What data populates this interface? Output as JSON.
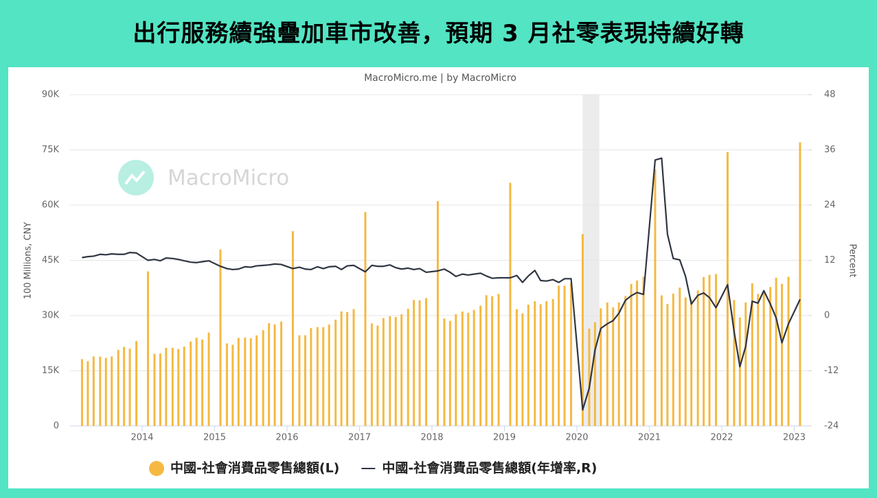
{
  "chart_data": {
    "type": "bar",
    "title": "出行服務續強疊加車市改善，預期 3 月社零表現持續好轉",
    "subtitle": "MacroMicro.me | by MacroMicro",
    "watermark": "MacroMicro",
    "y_label": "100 Millions, CNY",
    "y2_label": "Percent",
    "x": [
      2013.17,
      2013.25,
      2013.33,
      2013.42,
      2013.5,
      2013.58,
      2013.67,
      2013.75,
      2013.83,
      2013.92,
      2014.08,
      2014.17,
      2014.25,
      2014.33,
      2014.42,
      2014.5,
      2014.58,
      2014.67,
      2014.75,
      2014.83,
      2014.92,
      2015.08,
      2015.17,
      2015.25,
      2015.33,
      2015.42,
      2015.5,
      2015.58,
      2015.67,
      2015.75,
      2015.83,
      2015.92,
      2016.08,
      2016.17,
      2016.25,
      2016.33,
      2016.42,
      2016.5,
      2016.58,
      2016.67,
      2016.75,
      2016.83,
      2016.92,
      2017.08,
      2017.17,
      2017.25,
      2017.33,
      2017.42,
      2017.5,
      2017.58,
      2017.67,
      2017.75,
      2017.83,
      2017.92,
      2018.08,
      2018.17,
      2018.25,
      2018.33,
      2018.42,
      2018.5,
      2018.58,
      2018.67,
      2018.75,
      2018.83,
      2018.92,
      2019.08,
      2019.17,
      2019.25,
      2019.33,
      2019.42,
      2019.5,
      2019.58,
      2019.67,
      2019.75,
      2019.83,
      2019.92,
      2020.08,
      2020.17,
      2020.25,
      2020.33,
      2020.42,
      2020.5,
      2020.58,
      2020.67,
      2020.75,
      2020.83,
      2020.92,
      2021.08,
      2021.17,
      2021.25,
      2021.33,
      2021.42,
      2021.5,
      2021.58,
      2021.67,
      2021.75,
      2021.83,
      2021.92,
      2022.08,
      2022.17,
      2022.25,
      2022.33,
      2022.42,
      2022.5,
      2022.58,
      2022.67,
      2022.75,
      2022.83,
      2022.92,
      2023.08
    ],
    "series": [
      {
        "name": "中國-社會消費品零售總額(L)",
        "type": "bar",
        "color": "#f5b942",
        "values": [
          18164,
          17600,
          18886,
          18827,
          18513,
          18886,
          20653,
          21491,
          21012,
          23060,
          41999,
          19601,
          19701,
          21250,
          21239,
          20893,
          21567,
          22948,
          23966,
          23474,
          25376,
          47946,
          22427,
          22036,
          23933,
          24024,
          23827,
          24593,
          26035,
          27917,
          27583,
          28368,
          52910,
          24645,
          24646,
          26610,
          26857,
          26827,
          27539,
          28869,
          31119,
          30959,
          31757,
          58108,
          27864,
          27278,
          29306,
          29808,
          29610,
          30330,
          31835,
          34240,
          34108,
          34734,
          61082,
          29194,
          28542,
          30359,
          31077,
          30734,
          31542,
          32668,
          35534,
          35260,
          35893,
          66064,
          31726,
          30586,
          32956,
          33878,
          33073,
          33896,
          34495,
          38104,
          38094,
          38777,
          52130,
          26450,
          28178,
          31973,
          33526,
          32203,
          33571,
          35295,
          38576,
          39514,
          40566,
          69737,
          35484,
          33153,
          35945,
          37586,
          34925,
          34395,
          36833,
          40454,
          41043,
          41269,
          74426,
          34233,
          29483,
          33547,
          38742,
          35870,
          36258,
          37745,
          40271,
          38615,
          40542,
          77067
        ]
      },
      {
        "name": "中國-社會消費品零售總額(年增率,R)",
        "type": "line",
        "axis": "y2",
        "color": "#2f3541",
        "values": [
          12.6,
          12.8,
          12.9,
          13.3,
          13.2,
          13.4,
          13.3,
          13.3,
          13.7,
          13.6,
          12.0,
          12.2,
          11.9,
          12.5,
          12.4,
          12.2,
          11.9,
          11.6,
          11.5,
          11.7,
          11.9,
          10.7,
          10.2,
          10.0,
          10.1,
          10.6,
          10.5,
          10.8,
          10.9,
          11.0,
          11.2,
          11.1,
          10.2,
          10.5,
          10.1,
          10.0,
          10.6,
          10.2,
          10.6,
          10.7,
          10.0,
          10.8,
          10.9,
          9.5,
          10.9,
          10.7,
          10.7,
          11.0,
          10.4,
          10.1,
          10.3,
          10.0,
          10.2,
          9.4,
          9.7,
          10.1,
          9.4,
          8.5,
          9.0,
          8.8,
          9.0,
          9.2,
          8.6,
          8.1,
          8.2,
          8.2,
          8.7,
          7.2,
          8.6,
          9.8,
          7.6,
          7.5,
          7.8,
          7.2,
          8.0,
          8.0,
          -20.5,
          -15.8,
          -7.5,
          -2.8,
          -1.8,
          -1.1,
          0.5,
          3.3,
          4.3,
          5.0,
          4.6,
          33.8,
          34.2,
          17.7,
          12.4,
          12.1,
          8.5,
          2.5,
          4.4,
          4.9,
          3.9,
          1.7,
          6.7,
          -3.5,
          -11.1,
          -6.7,
          3.1,
          2.7,
          5.4,
          2.5,
          -0.5,
          -5.9,
          -1.8,
          3.5
        ]
      }
    ],
    "shaded_range": [
      2020.08,
      2020.31
    ],
    "xlim": [
      2013,
      2023.2
    ],
    "xticks": [
      2014,
      2015,
      2016,
      2017,
      2018,
      2019,
      2020,
      2021,
      2022,
      2023
    ],
    "ylim": [
      0,
      90000
    ],
    "yticks": [
      0,
      {
        "value": 15000,
        "label": "15K"
      },
      {
        "value": 30000,
        "label": "30K"
      },
      {
        "value": 45000,
        "label": "45K"
      },
      {
        "value": 60000,
        "label": "60K"
      },
      {
        "value": 75000,
        "label": "75K"
      },
      {
        "value": 90000,
        "label": "90K"
      }
    ],
    "y2lim": [
      -24,
      48
    ],
    "y2ticks": [
      -24,
      -12,
      0,
      12,
      24,
      36,
      48
    ],
    "grid": true,
    "legend": "bottom"
  }
}
